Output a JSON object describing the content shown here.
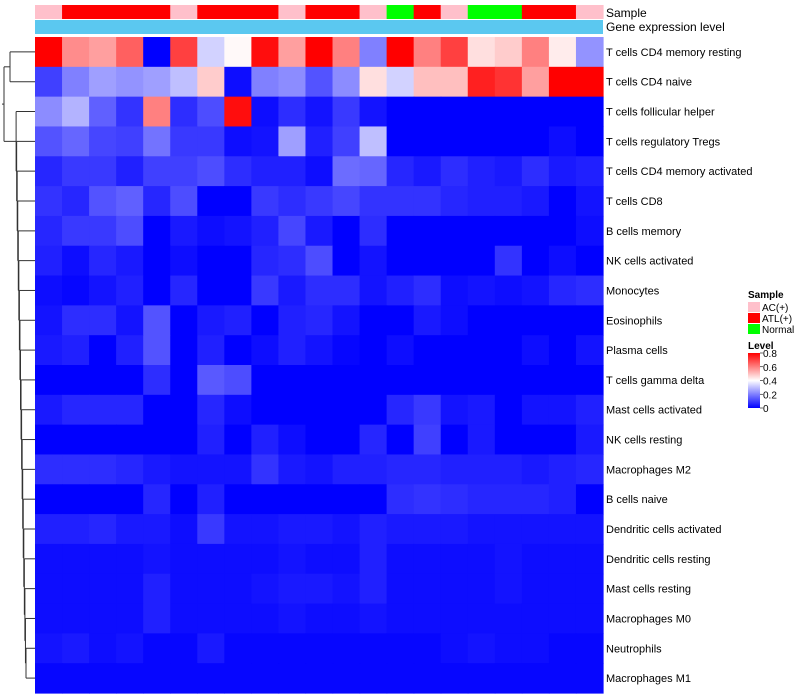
{
  "chart_data": {
    "type": "heatmap",
    "title": "",
    "annotations": {
      "sample_title": "Sample",
      "expression_title": "Gene expression level",
      "sample_groups": [
        "AC(+)",
        "ATL(+)",
        "ATL(+)",
        "ATL(+)",
        "ATL(+)",
        "AC(+)",
        "ATL(+)",
        "ATL(+)",
        "ATL(+)",
        "AC(+)",
        "ATL(+)",
        "ATL(+)",
        "AC(+)",
        "Normal",
        "ATL(+)",
        "AC(+)",
        "Normal",
        "Normal",
        "ATL(+)",
        "ATL(+)",
        "AC(+)"
      ]
    },
    "rows": [
      "T cells CD4 memory resting",
      "T cells CD4 naive",
      "T cells follicular helper",
      "T cells regulatory  Tregs",
      "T cells CD4 memory activated",
      "T cells CD8",
      "B cells memory",
      "NK cells activated",
      "Monocytes",
      "Eosinophils",
      "Plasma cells",
      "T cells gamma delta",
      "Mast cells activated",
      "NK cells resting",
      "Macrophages M2",
      "B cells naive",
      "Dendritic cells activated",
      "Dendritic cells resting",
      "Mast cells resting",
      "Macrophages M0",
      "Neutrophils",
      "Macrophages M1"
    ],
    "values": [
      [
        0.8,
        0.58,
        0.55,
        0.65,
        0.0,
        0.7,
        0.33,
        0.41,
        0.78,
        0.55,
        0.8,
        0.6,
        0.2,
        0.8,
        0.6,
        0.7,
        0.45,
        0.48,
        0.6,
        0.43,
        0.23
      ],
      [
        0.1,
        0.2,
        0.25,
        0.23,
        0.25,
        0.3,
        0.48,
        0.02,
        0.2,
        0.22,
        0.13,
        0.22,
        0.45,
        0.33,
        0.5,
        0.5,
        0.75,
        0.72,
        0.55,
        0.8,
        0.8
      ],
      [
        0.22,
        0.28,
        0.15,
        0.08,
        0.6,
        0.07,
        0.12,
        0.78,
        0.02,
        0.07,
        0.03,
        0.09,
        0.03,
        0.0,
        0.0,
        0.0,
        0.0,
        0.0,
        0.0,
        0.0,
        0.0
      ],
      [
        0.13,
        0.16,
        0.11,
        0.1,
        0.18,
        0.09,
        0.09,
        0.02,
        0.03,
        0.25,
        0.05,
        0.1,
        0.3,
        0.0,
        0.0,
        0.0,
        0.0,
        0.0,
        0.0,
        0.02,
        0.0
      ],
      [
        0.06,
        0.09,
        0.09,
        0.05,
        0.1,
        0.1,
        0.12,
        0.07,
        0.05,
        0.05,
        0.02,
        0.17,
        0.16,
        0.06,
        0.04,
        0.07,
        0.05,
        0.04,
        0.07,
        0.04,
        0.05
      ],
      [
        0.08,
        0.06,
        0.13,
        0.15,
        0.06,
        0.12,
        0.0,
        0.0,
        0.09,
        0.07,
        0.09,
        0.11,
        0.08,
        0.08,
        0.08,
        0.06,
        0.05,
        0.05,
        0.04,
        0.0,
        0.03
      ],
      [
        0.06,
        0.09,
        0.09,
        0.12,
        0.0,
        0.04,
        0.02,
        0.03,
        0.05,
        0.11,
        0.04,
        0.0,
        0.07,
        0.0,
        0.0,
        0.0,
        0.0,
        0.0,
        0.0,
        0.0,
        0.02
      ],
      [
        0.05,
        0.02,
        0.06,
        0.04,
        0.0,
        0.02,
        0.0,
        0.0,
        0.06,
        0.07,
        0.12,
        0.0,
        0.03,
        0.0,
        0.0,
        0.0,
        0.0,
        0.08,
        0.0,
        0.02,
        0.0
      ],
      [
        0.02,
        0.01,
        0.03,
        0.05,
        0.0,
        0.06,
        0.0,
        0.0,
        0.09,
        0.04,
        0.07,
        0.07,
        0.03,
        0.05,
        0.07,
        0.02,
        0.03,
        0.02,
        0.03,
        0.06,
        0.07
      ],
      [
        0.03,
        0.07,
        0.07,
        0.03,
        0.13,
        0.0,
        0.04,
        0.05,
        0.0,
        0.05,
        0.06,
        0.03,
        0.0,
        0.0,
        0.04,
        0.02,
        0.0,
        0.0,
        0.0,
        0.0,
        0.0
      ],
      [
        0.04,
        0.05,
        0.0,
        0.05,
        0.13,
        0.0,
        0.05,
        0.0,
        0.02,
        0.05,
        0.03,
        0.01,
        0.0,
        0.02,
        0.0,
        0.0,
        0.0,
        0.0,
        0.02,
        0.0,
        0.03
      ],
      [
        0.0,
        0.0,
        0.0,
        0.0,
        0.07,
        0.0,
        0.14,
        0.12,
        0.0,
        0.0,
        0.0,
        0.0,
        0.0,
        0.0,
        0.0,
        0.0,
        0.0,
        0.0,
        0.0,
        0.0,
        0.0
      ],
      [
        0.04,
        0.06,
        0.06,
        0.06,
        0.0,
        0.0,
        0.06,
        0.02,
        0.0,
        0.0,
        0.0,
        0.0,
        0.0,
        0.06,
        0.09,
        0.03,
        0.04,
        0.0,
        0.03,
        0.03,
        0.05
      ],
      [
        0.0,
        0.0,
        0.0,
        0.0,
        0.0,
        0.0,
        0.05,
        0.0,
        0.05,
        0.02,
        0.0,
        0.0,
        0.06,
        0.0,
        0.1,
        0.0,
        0.04,
        0.0,
        0.0,
        0.0,
        0.04
      ],
      [
        0.07,
        0.07,
        0.07,
        0.06,
        0.04,
        0.03,
        0.03,
        0.03,
        0.08,
        0.04,
        0.03,
        0.05,
        0.05,
        0.06,
        0.06,
        0.05,
        0.05,
        0.05,
        0.04,
        0.05,
        0.06
      ],
      [
        0.0,
        0.0,
        0.0,
        0.0,
        0.06,
        0.0,
        0.05,
        0.0,
        0.0,
        0.0,
        0.0,
        0.0,
        0.0,
        0.07,
        0.08,
        0.07,
        0.06,
        0.06,
        0.06,
        0.05,
        0.0
      ],
      [
        0.05,
        0.05,
        0.06,
        0.04,
        0.04,
        0.02,
        0.09,
        0.03,
        0.03,
        0.04,
        0.04,
        0.03,
        0.05,
        0.04,
        0.04,
        0.04,
        0.03,
        0.03,
        0.03,
        0.03,
        0.03
      ],
      [
        0.02,
        0.02,
        0.02,
        0.02,
        0.03,
        0.02,
        0.02,
        0.02,
        0.02,
        0.03,
        0.02,
        0.02,
        0.05,
        0.02,
        0.02,
        0.02,
        0.02,
        0.03,
        0.02,
        0.02,
        0.02
      ],
      [
        0.02,
        0.02,
        0.02,
        0.02,
        0.05,
        0.02,
        0.02,
        0.02,
        0.03,
        0.04,
        0.04,
        0.03,
        0.05,
        0.02,
        0.02,
        0.02,
        0.02,
        0.03,
        0.02,
        0.02,
        0.02
      ],
      [
        0.02,
        0.02,
        0.02,
        0.02,
        0.05,
        0.02,
        0.02,
        0.02,
        0.02,
        0.03,
        0.02,
        0.02,
        0.03,
        0.02,
        0.02,
        0.02,
        0.02,
        0.02,
        0.02,
        0.02,
        0.02
      ],
      [
        0.03,
        0.04,
        0.02,
        0.03,
        0.01,
        0.01,
        0.04,
        0.01,
        0.01,
        0.01,
        0.01,
        0.01,
        0.01,
        0.01,
        0.01,
        0.02,
        0.03,
        0.02,
        0.02,
        0.01,
        0.01
      ],
      [
        0.01,
        0.01,
        0.01,
        0.01,
        0.01,
        0.01,
        0.01,
        0.01,
        0.01,
        0.01,
        0.01,
        0.01,
        0.01,
        0.01,
        0.01,
        0.01,
        0.01,
        0.01,
        0.01,
        0.01,
        0.01
      ]
    ],
    "color_scale": {
      "low": "#0000ff",
      "mid": "#ffffff",
      "high": "#ff0000",
      "min": 0,
      "mid_value": 0.4,
      "max": 0.8
    },
    "legend": {
      "sample_title": "Sample",
      "sample_entries": [
        {
          "label": "AC(+)",
          "color": "#ffc0cb"
        },
        {
          "label": "ATL(+)",
          "color": "#ff0000"
        },
        {
          "label": "Normal",
          "color": "#00ff00"
        }
      ],
      "level_title": "Level",
      "level_ticks": [
        "0.8",
        "0.6",
        "0.4",
        "0.2",
        "0"
      ],
      "placement": "right"
    },
    "annotation_colors": {
      "expression_bar": "#5bc8f0"
    },
    "dendrogram": "left"
  }
}
